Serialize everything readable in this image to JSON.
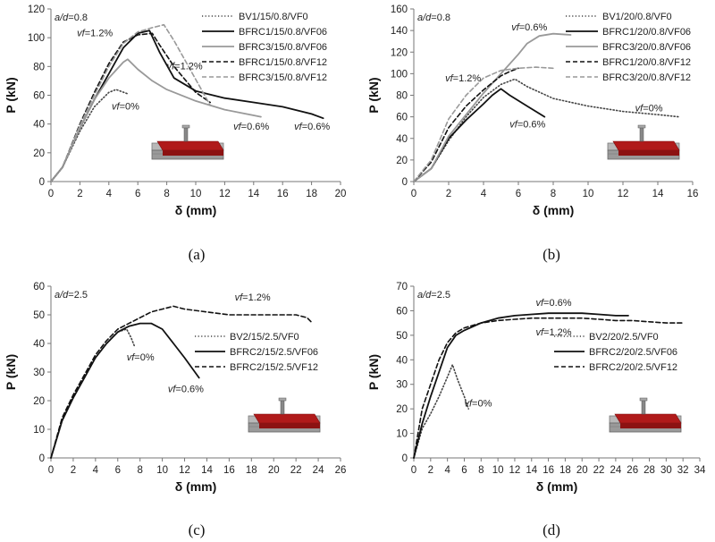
{
  "chart_data": [
    {
      "id": "a",
      "type": "line",
      "panel_label": "(a)",
      "ylabel": "P (kN)",
      "xlabel": "δ (mm)",
      "xlim": [
        0,
        20
      ],
      "ylim": [
        0,
        120
      ],
      "xticks": [
        "0",
        "2",
        "4",
        "6",
        "8",
        "10",
        "12",
        "14",
        "16",
        "18",
        "20"
      ],
      "yticks": [
        "0",
        "20",
        "40",
        "60",
        "80",
        "100",
        "120"
      ],
      "grid": false,
      "legend_position": "top-right",
      "corner_note": "a/d=0.8",
      "series": [
        {
          "name": "BV1/15/0.8/VF0",
          "color": "#444444",
          "dash": "dotted",
          "x": [
            0,
            0.8,
            2,
            3,
            4,
            4.5,
            5.3
          ],
          "y": [
            0,
            10,
            35,
            52,
            62,
            64,
            61
          ]
        },
        {
          "name": "BFRC1/15/0.8/VF06",
          "color": "#111111",
          "dash": "solid",
          "x": [
            0,
            0.8,
            2,
            3,
            4,
            5,
            6,
            6.8,
            7.5,
            8.5,
            10,
            12,
            14,
            16,
            18,
            18.8
          ],
          "y": [
            0,
            10,
            37,
            57,
            75,
            93,
            103,
            105,
            90,
            72,
            63,
            58,
            55,
            52,
            47,
            44
          ]
        },
        {
          "name": "BFRC3/15/0.8/VF06",
          "color": "#999999",
          "dash": "solid",
          "x": [
            0,
            0.8,
            2,
            3,
            4,
            5,
            5.3,
            6,
            7,
            8,
            10,
            12,
            14,
            14.5
          ],
          "y": [
            0,
            10,
            37,
            57,
            72,
            83,
            85,
            78,
            70,
            64,
            56,
            50,
            46,
            45
          ]
        },
        {
          "name": "BFRC1/15/0.8/VF12",
          "color": "#111111",
          "dash": "dashed",
          "x": [
            0,
            0.8,
            2,
            3,
            4,
            5,
            6,
            7,
            7.5,
            8.5,
            10,
            11
          ],
          "y": [
            0,
            10,
            40,
            62,
            82,
            97,
            102,
            103,
            95,
            80,
            62,
            55
          ]
        },
        {
          "name": "BFRC3/15/0.8/VF12",
          "color": "#999999",
          "dash": "dashed",
          "x": [
            0,
            0.8,
            2,
            3,
            4,
            5,
            6,
            7,
            7.8,
            8.5,
            9.5,
            10.5,
            11
          ],
          "y": [
            0,
            10,
            39,
            60,
            80,
            96,
            104,
            107,
            109,
            98,
            80,
            62,
            53
          ]
        }
      ],
      "annotations": [
        {
          "text": "vf=1.2%",
          "x": 1.8,
          "y": 101
        },
        {
          "text": "vf=1.2%",
          "x": 8,
          "y": 78
        },
        {
          "text": "vf=0%",
          "x": 4.2,
          "y": 50
        },
        {
          "text": "vf=0.6%",
          "x": 12.6,
          "y": 36
        },
        {
          "text": "vf=0.6%",
          "x": 16.8,
          "y": 36
        }
      ]
    },
    {
      "id": "b",
      "type": "line",
      "panel_label": "(b)",
      "ylabel": "P (kN)",
      "xlabel": "δ (mm)",
      "xlim": [
        0,
        16
      ],
      "ylim": [
        0,
        160
      ],
      "xticks": [
        "0",
        "2",
        "4",
        "6",
        "8",
        "10",
        "12",
        "14",
        "16"
      ],
      "yticks": [
        "0",
        "20",
        "40",
        "60",
        "80",
        "100",
        "120",
        "140",
        "160"
      ],
      "grid": false,
      "legend_position": "top-right",
      "corner_note": "a/d=0.8",
      "series": [
        {
          "name": "BV1/20/0.8/VF0",
          "color": "#444444",
          "dash": "dotted",
          "x": [
            0,
            1,
            2,
            3,
            4,
            5,
            5.8,
            6.5,
            8,
            10,
            12,
            14,
            15.2
          ],
          "y": [
            0,
            12,
            38,
            60,
            78,
            90,
            95,
            88,
            77,
            70,
            65,
            62,
            60
          ]
        },
        {
          "name": "BFRC1/20/0.8/VF06",
          "color": "#111111",
          "dash": "solid",
          "x": [
            0,
            1,
            2,
            3,
            4,
            4.5,
            5,
            5.5,
            6.5,
            7.5
          ],
          "y": [
            0,
            12,
            40,
            57,
            72,
            80,
            86,
            80,
            70,
            60
          ]
        },
        {
          "name": "BFRC3/20/0.8/VF06",
          "color": "#999999",
          "dash": "solid",
          "x": [
            0,
            1,
            2,
            3,
            4,
            5,
            6,
            6.5,
            7.2,
            8,
            9
          ],
          "y": [
            0,
            12,
            42,
            62,
            82,
            100,
            118,
            128,
            135,
            137,
            136
          ]
        },
        {
          "name": "BFRC1/20/0.8/VF12",
          "color": "#111111",
          "dash": "dashed",
          "x": [
            0,
            1,
            2,
            3,
            4,
            5,
            5.5,
            6
          ],
          "y": [
            0,
            18,
            50,
            70,
            85,
            98,
            102,
            105
          ]
        },
        {
          "name": "BFRC3/20/0.8/VF12",
          "color": "#999999",
          "dash": "dashed",
          "x": [
            0,
            1,
            2,
            3,
            4,
            5,
            6,
            7,
            8
          ],
          "y": [
            0,
            20,
            58,
            80,
            96,
            103,
            105,
            106,
            105
          ]
        }
      ],
      "annotations": [
        {
          "text": "vf=0.6%",
          "x": 5.6,
          "y": 140
        },
        {
          "text": "vf=1.2%",
          "x": 1.8,
          "y": 93
        },
        {
          "text": "vf=0%",
          "x": 12.7,
          "y": 65
        },
        {
          "text": "vf=0.6%",
          "x": 5.5,
          "y": 50
        }
      ]
    },
    {
      "id": "c",
      "type": "line",
      "panel_label": "(c)",
      "ylabel": "P (kN)",
      "xlabel": "δ (mm)",
      "xlim": [
        0,
        26
      ],
      "ylim": [
        0,
        60
      ],
      "xticks": [
        "0",
        "2",
        "4",
        "6",
        "8",
        "10",
        "12",
        "14",
        "16",
        "18",
        "20",
        "22",
        "24",
        "26"
      ],
      "yticks": [
        "0",
        "10",
        "20",
        "30",
        "40",
        "50",
        "60"
      ],
      "grid": false,
      "legend_position": "right",
      "corner_note": "a/d=2.5",
      "series": [
        {
          "name": "BV2/15/2.5/VF0",
          "color": "#444444",
          "dash": "dotted",
          "x": [
            0,
            1,
            2,
            3,
            4,
            5,
            6,
            6.8,
            7.2,
            7.5
          ],
          "y": [
            0,
            13,
            21,
            28,
            35,
            40,
            44,
            45,
            42,
            39
          ]
        },
        {
          "name": "BFRC2/15/2.5/VF06",
          "color": "#111111",
          "dash": "solid",
          "x": [
            0,
            1,
            2,
            3,
            4,
            5,
            6,
            7,
            8,
            9,
            10,
            11,
            12,
            13.3
          ],
          "y": [
            0,
            13,
            21,
            28,
            35,
            40,
            44,
            46,
            47,
            47,
            45,
            40,
            35,
            28
          ]
        },
        {
          "name": "BFRC2/15/2.5/VF12",
          "color": "#111111",
          "dash": "dashed",
          "x": [
            0,
            1,
            2,
            3,
            4,
            5,
            6,
            7,
            8,
            9,
            10,
            11,
            12,
            14,
            16,
            18,
            20,
            22,
            23,
            23.5
          ],
          "y": [
            0,
            14,
            22,
            29,
            36,
            41,
            45,
            47,
            49,
            51,
            52,
            53,
            52,
            51,
            50,
            50,
            50,
            50,
            49,
            47
          ]
        }
      ],
      "annotations": [
        {
          "text": "vf=1.2%",
          "x": 16.5,
          "y": 55
        },
        {
          "text": "vf=0%",
          "x": 6.8,
          "y": 34
        },
        {
          "text": "vf=0.6%",
          "x": 10.5,
          "y": 23
        }
      ]
    },
    {
      "id": "d",
      "type": "line",
      "panel_label": "(d)",
      "ylabel": "P (kN)",
      "xlabel": "δ (mm)",
      "xlim": [
        0,
        34
      ],
      "ylim": [
        0,
        70
      ],
      "xticks": [
        "0",
        "2",
        "4",
        "6",
        "8",
        "10",
        "12",
        "14",
        "16",
        "18",
        "20",
        "22",
        "24",
        "26",
        "28",
        "30",
        "32",
        "34"
      ],
      "yticks": [
        "0",
        "10",
        "20",
        "30",
        "40",
        "50",
        "60",
        "70"
      ],
      "grid": false,
      "legend_position": "right",
      "corner_note": "a/d=2.5",
      "series": [
        {
          "name": "BV2/20/2.5/VF0",
          "color": "#444444",
          "dash": "dotted",
          "x": [
            0,
            1,
            2,
            3,
            4,
            4.6,
            5.2,
            6,
            6.5
          ],
          "y": [
            0,
            12,
            18,
            25,
            33,
            38,
            32,
            25,
            20
          ]
        },
        {
          "name": "BFRC2/20/2.5/VF06",
          "color": "#111111",
          "dash": "solid",
          "x": [
            0,
            1,
            2,
            3,
            4,
            5,
            6,
            8,
            10,
            12,
            14,
            16,
            18,
            20,
            22,
            24,
            25.5
          ],
          "y": [
            0,
            14,
            25,
            35,
            45,
            50,
            52,
            55,
            57,
            58,
            58.5,
            59,
            59,
            59,
            58.5,
            58,
            58
          ]
        },
        {
          "name": "BFRC2/20/2.5/VF12",
          "color": "#111111",
          "dash": "dashed",
          "x": [
            0,
            1,
            2,
            3,
            4,
            5,
            6,
            8,
            10,
            12,
            14,
            16,
            18,
            20,
            22,
            24,
            26,
            28,
            30,
            32
          ],
          "y": [
            0,
            20,
            30,
            40,
            47,
            51,
            53,
            55,
            56,
            56.5,
            57,
            57,
            57,
            57,
            56.5,
            56,
            56,
            55.5,
            55,
            55
          ]
        }
      ],
      "annotations": [
        {
          "text": "vf=0.6%",
          "x": 14.5,
          "y": 62
        },
        {
          "text": "vf=1.2%",
          "x": 14.5,
          "y": 50
        },
        {
          "text": "vf=0%",
          "x": 6,
          "y": 21
        }
      ]
    }
  ]
}
